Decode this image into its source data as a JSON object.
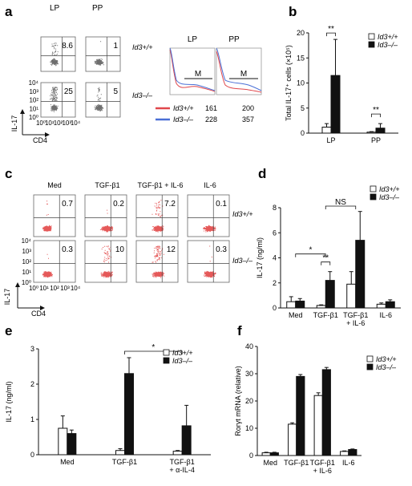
{
  "panels": {
    "a": {
      "label": "a",
      "columns": [
        "LP",
        "PP"
      ],
      "genotypes": [
        "Id3+/+",
        "Id3–/–"
      ],
      "quadrant_values": [
        [
          "8.6",
          "1"
        ],
        [
          "25",
          "5"
        ]
      ],
      "ylabel": "IL-17",
      "xlabel": "CD4",
      "ticks": [
        "10⁰",
        "10¹",
        "10²",
        "10³",
        "10⁴"
      ],
      "histogram": {
        "titles": [
          "LP",
          "PP"
        ],
        "gate_label": "M",
        "legend": [
          {
            "name": "Id3+/+",
            "color": "#e0474c",
            "values": [
              "161",
              "200"
            ]
          },
          {
            "name": "Id3–/–",
            "color": "#4a6fd6",
            "values": [
              "228",
              "357"
            ]
          }
        ]
      }
    },
    "c": {
      "label": "c",
      "columns": [
        "Med",
        "TGF-β1",
        "TGF-β1 + IL-6",
        "IL-6"
      ],
      "genotypes": [
        "Id3+/+",
        "Id3–/–"
      ],
      "quadrant_values": [
        [
          "0.7",
          "0.2",
          "7.2",
          "0.1"
        ],
        [
          "0.3",
          "10",
          "12",
          "0.3"
        ]
      ],
      "ylabel": "IL-17",
      "xlabel": "CD4",
      "ticks": [
        "10⁰",
        "10¹",
        "10²",
        "10³",
        "10⁴"
      ]
    }
  },
  "chart_data": [
    {
      "id": "b",
      "label": "b",
      "type": "bar",
      "ylabel": "Total IL-17⁺ cells (×10⁵)",
      "ylim": [
        0,
        20
      ],
      "yticks": [
        "0",
        "5",
        "10",
        "15",
        "20"
      ],
      "categories": [
        "LP",
        "PP"
      ],
      "series": [
        {
          "name": "Id3+/+",
          "values": [
            1.2,
            0.2
          ],
          "errors": [
            0.7,
            0.1
          ]
        },
        {
          "name": "Id3–/–",
          "values": [
            11.5,
            1.0
          ],
          "errors": [
            7.2,
            0.9
          ]
        }
      ],
      "annotations": [
        {
          "text": "**",
          "groups": [
            0,
            0
          ]
        },
        {
          "text": "**",
          "groups": [
            1,
            1
          ]
        }
      ],
      "legend": "top-right"
    },
    {
      "id": "d",
      "label": "d",
      "type": "bar",
      "ylabel": "IL-17 (ng/ml)",
      "ylim": [
        0,
        8
      ],
      "yticks": [
        "0",
        "2",
        "4",
        "6",
        "8"
      ],
      "categories": [
        "Med",
        "TGF-β1",
        "TGF-β1\n+ IL-6",
        "IL-6"
      ],
      "series": [
        {
          "name": "Id3+/+",
          "values": [
            0.5,
            0.2,
            1.9,
            0.3
          ],
          "errors": [
            0.4,
            0.05,
            1.0,
            0.1
          ]
        },
        {
          "name": "Id3–/–",
          "values": [
            0.55,
            2.2,
            5.4,
            0.5
          ],
          "errors": [
            0.2,
            0.7,
            2.3,
            0.15
          ]
        }
      ],
      "annotations": [
        {
          "text": "*",
          "groups": [
            0,
            1
          ]
        },
        {
          "text": "**",
          "groups": [
            1,
            1
          ]
        },
        {
          "text": "NS",
          "groups": [
            1,
            2
          ]
        }
      ],
      "legend": "top-right"
    },
    {
      "id": "e",
      "label": "e",
      "type": "bar",
      "ylabel": "IL-17 (ng/ml)",
      "ylim": [
        0,
        3
      ],
      "yticks": [
        "0",
        "1",
        "2",
        "3"
      ],
      "categories": [
        "Med",
        "TGF-β1",
        "TGF-β1\n+ α-IL-4"
      ],
      "series": [
        {
          "name": "Id3+/+",
          "values": [
            0.75,
            0.12,
            0.1
          ],
          "errors": [
            0.35,
            0.05,
            0.02
          ]
        },
        {
          "name": "Id3–/–",
          "values": [
            0.6,
            2.3,
            0.82
          ],
          "errors": [
            0.1,
            0.45,
            0.58
          ]
        }
      ],
      "annotations": [
        {
          "text": "*",
          "groups": [
            1,
            2
          ]
        }
      ],
      "legend": "top-right"
    },
    {
      "id": "f",
      "label": "f",
      "type": "bar",
      "ylabel": "Rorγt mRNA (relative)",
      "ylim": [
        0,
        40
      ],
      "yticks": [
        "0",
        "10",
        "20",
        "30",
        "40"
      ],
      "categories": [
        "Med",
        "TGF-β1",
        "TGF-β1\n+ IL-6",
        "IL-6"
      ],
      "series": [
        {
          "name": "Id3+/+",
          "values": [
            1.0,
            11.5,
            22.0,
            1.5
          ],
          "errors": [
            0.2,
            0.5,
            1.0,
            0.2
          ]
        },
        {
          "name": "Id3–/–",
          "values": [
            1.0,
            29.0,
            31.5,
            2.2
          ],
          "errors": [
            0.2,
            0.7,
            0.8,
            0.2
          ]
        }
      ],
      "annotations": [],
      "legend": "top-right"
    }
  ]
}
